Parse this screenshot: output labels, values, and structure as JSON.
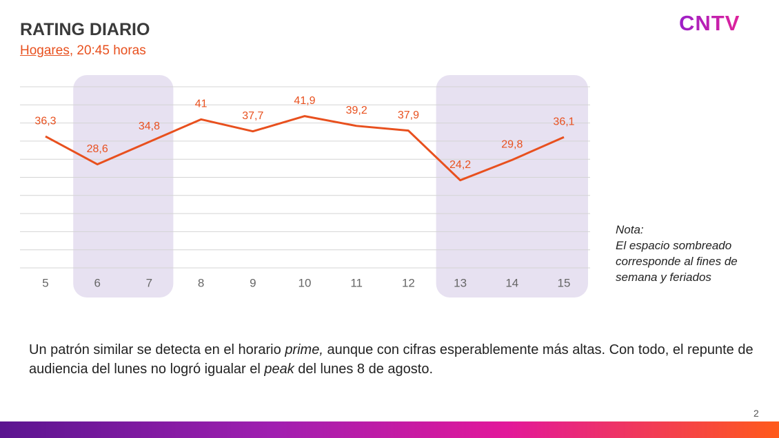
{
  "header": {
    "title": "RATING DIARIO",
    "subtitle_link": "Hogares",
    "subtitle_rest": ", 20:45 horas",
    "logo": "CNTV"
  },
  "chart_data": {
    "type": "line",
    "categories": [
      "5",
      "6",
      "7",
      "8",
      "9",
      "10",
      "11",
      "12",
      "13",
      "14",
      "15"
    ],
    "values": [
      36.3,
      28.6,
      34.8,
      41,
      37.7,
      41.9,
      39.2,
      37.9,
      24.2,
      29.8,
      36.1
    ],
    "value_labels": [
      "36,3",
      "28,6",
      "34,8",
      "41",
      "37,7",
      "41,9",
      "39,2",
      "37,9",
      "24,2",
      "29,8",
      "36,1"
    ],
    "color": "#e8501e",
    "ylim": [
      0,
      50
    ],
    "yticks": [
      0,
      5,
      10,
      15,
      20,
      25,
      30,
      35,
      40,
      45,
      50
    ],
    "grid": true,
    "shaded": [
      [
        1,
        2
      ],
      [
        8,
        10
      ]
    ],
    "shade_color": "#e7e1f1"
  },
  "note": {
    "heading": "Nota:",
    "lines": [
      "El espacio sombreado",
      "corresponde al fines de",
      "semana y feriados"
    ]
  },
  "body": {
    "segments": [
      "Un patrón similar se detecta en el horario ",
      "prime,",
      " aunque con cifras esperablemente más altas. Con todo, el repunte de audiencia del lunes no logró igualar el ",
      "peak",
      " del lunes 8 de agosto."
    ]
  },
  "page_number": "2"
}
